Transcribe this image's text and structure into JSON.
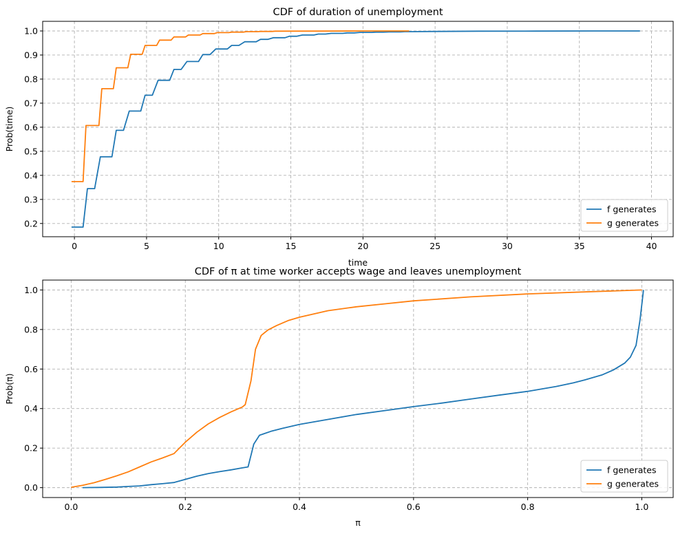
{
  "colors": {
    "f": "#1f77b4",
    "g": "#ff7f0e"
  },
  "chart_data": [
    {
      "type": "line",
      "title": "CDF of duration of unemployment",
      "xlabel": "time",
      "ylabel": "Prob(time)",
      "xlim": [
        -2.2,
        41.5
      ],
      "ylim": [
        0.145,
        1.04
      ],
      "xticks": [
        0,
        5,
        10,
        15,
        20,
        25,
        30,
        35,
        40
      ],
      "yticks": [
        0.2,
        0.3,
        0.4,
        0.5,
        0.6,
        0.7,
        0.8,
        0.9,
        1.0
      ],
      "xtick_labels": [
        "0",
        "5",
        "10",
        "15",
        "20",
        "25",
        "30",
        "35",
        "40"
      ],
      "ytick_labels": [
        "0.2",
        "0.3",
        "0.4",
        "0.5",
        "0.6",
        "0.7",
        "0.8",
        "0.9",
        "1.0"
      ],
      "grid": true,
      "legend_position": "lower-right",
      "series": [
        {
          "name": "f generates",
          "color_key": "f",
          "points": [
            [
              -0.2,
              0.185
            ],
            [
              0.6,
              0.185
            ],
            [
              0.9,
              0.345
            ],
            [
              1.4,
              0.345
            ],
            [
              1.8,
              0.477
            ],
            [
              2.6,
              0.477
            ],
            [
              2.9,
              0.587
            ],
            [
              3.4,
              0.587
            ],
            [
              3.8,
              0.667
            ],
            [
              4.6,
              0.667
            ],
            [
              4.9,
              0.733
            ],
            [
              5.4,
              0.733
            ],
            [
              5.8,
              0.795
            ],
            [
              6.6,
              0.795
            ],
            [
              6.9,
              0.84
            ],
            [
              7.4,
              0.84
            ],
            [
              7.8,
              0.873
            ],
            [
              8.6,
              0.873
            ],
            [
              8.9,
              0.902
            ],
            [
              9.4,
              0.902
            ],
            [
              9.8,
              0.925
            ],
            [
              10.6,
              0.925
            ],
            [
              10.9,
              0.94
            ],
            [
              11.4,
              0.94
            ],
            [
              11.8,
              0.955
            ],
            [
              12.6,
              0.955
            ],
            [
              12.9,
              0.965
            ],
            [
              13.4,
              0.965
            ],
            [
              13.8,
              0.972
            ],
            [
              14.6,
              0.972
            ],
            [
              14.9,
              0.978
            ],
            [
              15.4,
              0.978
            ],
            [
              15.8,
              0.983
            ],
            [
              16.6,
              0.983
            ],
            [
              16.9,
              0.987
            ],
            [
              17.4,
              0.987
            ],
            [
              17.8,
              0.99
            ],
            [
              18.6,
              0.99
            ],
            [
              18.9,
              0.992
            ],
            [
              19.4,
              0.992
            ],
            [
              19.8,
              0.994
            ],
            [
              20.6,
              0.994
            ],
            [
              20.9,
              0.995
            ],
            [
              21.4,
              0.995
            ],
            [
              21.8,
              0.996
            ],
            [
              22.6,
              0.996
            ],
            [
              22.9,
              0.997
            ],
            [
              23.4,
              0.997
            ],
            [
              25,
              0.998
            ],
            [
              28,
              0.999
            ],
            [
              32,
              0.9995
            ],
            [
              36,
              1.0
            ],
            [
              39.2,
              1.0
            ]
          ]
        },
        {
          "name": "g generates",
          "color_key": "g",
          "points": [
            [
              -0.2,
              0.374
            ],
            [
              0.6,
              0.374
            ],
            [
              0.8,
              0.607
            ],
            [
              1.7,
              0.607
            ],
            [
              1.9,
              0.76
            ],
            [
              2.7,
              0.76
            ],
            [
              2.9,
              0.847
            ],
            [
              3.7,
              0.847
            ],
            [
              3.9,
              0.903
            ],
            [
              4.7,
              0.903
            ],
            [
              4.9,
              0.94
            ],
            [
              5.7,
              0.94
            ],
            [
              5.9,
              0.962
            ],
            [
              6.7,
              0.962
            ],
            [
              6.9,
              0.975
            ],
            [
              7.7,
              0.975
            ],
            [
              7.9,
              0.983
            ],
            [
              8.7,
              0.983
            ],
            [
              8.9,
              0.989
            ],
            [
              9.7,
              0.989
            ],
            [
              9.9,
              0.993
            ],
            [
              10.7,
              0.993
            ],
            [
              10.9,
              0.995
            ],
            [
              11.7,
              0.995
            ],
            [
              11.9,
              0.997
            ],
            [
              12.7,
              0.997
            ],
            [
              12.9,
              0.998
            ],
            [
              13.7,
              0.998
            ],
            [
              13.9,
              0.999
            ],
            [
              17,
              0.9995
            ],
            [
              20,
              1.0
            ],
            [
              23.2,
              1.0
            ]
          ]
        }
      ]
    },
    {
      "type": "line",
      "title": "CDF of π at time worker accepts wage and leaves unemployment",
      "xlabel": "π",
      "ylabel": "Prob(π)",
      "xlim": [
        -0.05,
        1.055
      ],
      "ylim": [
        -0.05,
        1.05
      ],
      "xticks": [
        0.0,
        0.2,
        0.4,
        0.6,
        0.8,
        1.0
      ],
      "yticks": [
        0.0,
        0.2,
        0.4,
        0.6,
        0.8,
        1.0
      ],
      "xtick_labels": [
        "0.0",
        "0.2",
        "0.4",
        "0.6",
        "0.8",
        "1.0"
      ],
      "ytick_labels": [
        "0.0",
        "0.2",
        "0.4",
        "0.6",
        "0.8",
        "1.0"
      ],
      "grid": true,
      "legend_position": "lower-right",
      "series": [
        {
          "name": "f generates",
          "color_key": "f",
          "points": [
            [
              0.02,
              0.0
            ],
            [
              0.05,
              0.001
            ],
            [
              0.08,
              0.003
            ],
            [
              0.1,
              0.006
            ],
            [
              0.12,
              0.009
            ],
            [
              0.14,
              0.015
            ],
            [
              0.16,
              0.02
            ],
            [
              0.18,
              0.026
            ],
            [
              0.2,
              0.042
            ],
            [
              0.22,
              0.058
            ],
            [
              0.24,
              0.071
            ],
            [
              0.26,
              0.081
            ],
            [
              0.28,
              0.09
            ],
            [
              0.3,
              0.1
            ],
            [
              0.31,
              0.105
            ],
            [
              0.32,
              0.22
            ],
            [
              0.33,
              0.265
            ],
            [
              0.35,
              0.285
            ],
            [
              0.37,
              0.3
            ],
            [
              0.4,
              0.32
            ],
            [
              0.45,
              0.345
            ],
            [
              0.5,
              0.37
            ],
            [
              0.55,
              0.39
            ],
            [
              0.6,
              0.41
            ],
            [
              0.65,
              0.428
            ],
            [
              0.7,
              0.448
            ],
            [
              0.75,
              0.468
            ],
            [
              0.8,
              0.487
            ],
            [
              0.85,
              0.512
            ],
            [
              0.88,
              0.53
            ],
            [
              0.9,
              0.545
            ],
            [
              0.93,
              0.57
            ],
            [
              0.95,
              0.595
            ],
            [
              0.97,
              0.63
            ],
            [
              0.98,
              0.66
            ],
            [
              0.99,
              0.72
            ],
            [
              0.997,
              0.85
            ],
            [
              1.003,
              1.0
            ]
          ]
        },
        {
          "name": "g generates",
          "color_key": "g",
          "points": [
            [
              0.0,
              0.002
            ],
            [
              0.02,
              0.012
            ],
            [
              0.04,
              0.025
            ],
            [
              0.06,
              0.042
            ],
            [
              0.08,
              0.06
            ],
            [
              0.1,
              0.08
            ],
            [
              0.12,
              0.105
            ],
            [
              0.14,
              0.13
            ],
            [
              0.16,
              0.15
            ],
            [
              0.18,
              0.172
            ],
            [
              0.2,
              0.23
            ],
            [
              0.22,
              0.28
            ],
            [
              0.24,
              0.322
            ],
            [
              0.26,
              0.355
            ],
            [
              0.28,
              0.383
            ],
            [
              0.3,
              0.408
            ],
            [
              0.305,
              0.42
            ],
            [
              0.315,
              0.54
            ],
            [
              0.323,
              0.7
            ],
            [
              0.333,
              0.77
            ],
            [
              0.345,
              0.798
            ],
            [
              0.36,
              0.82
            ],
            [
              0.38,
              0.845
            ],
            [
              0.4,
              0.862
            ],
            [
              0.45,
              0.895
            ],
            [
              0.5,
              0.915
            ],
            [
              0.55,
              0.93
            ],
            [
              0.6,
              0.945
            ],
            [
              0.7,
              0.965
            ],
            [
              0.8,
              0.98
            ],
            [
              0.9,
              0.99
            ],
            [
              1.0,
              1.0
            ]
          ]
        }
      ]
    }
  ]
}
